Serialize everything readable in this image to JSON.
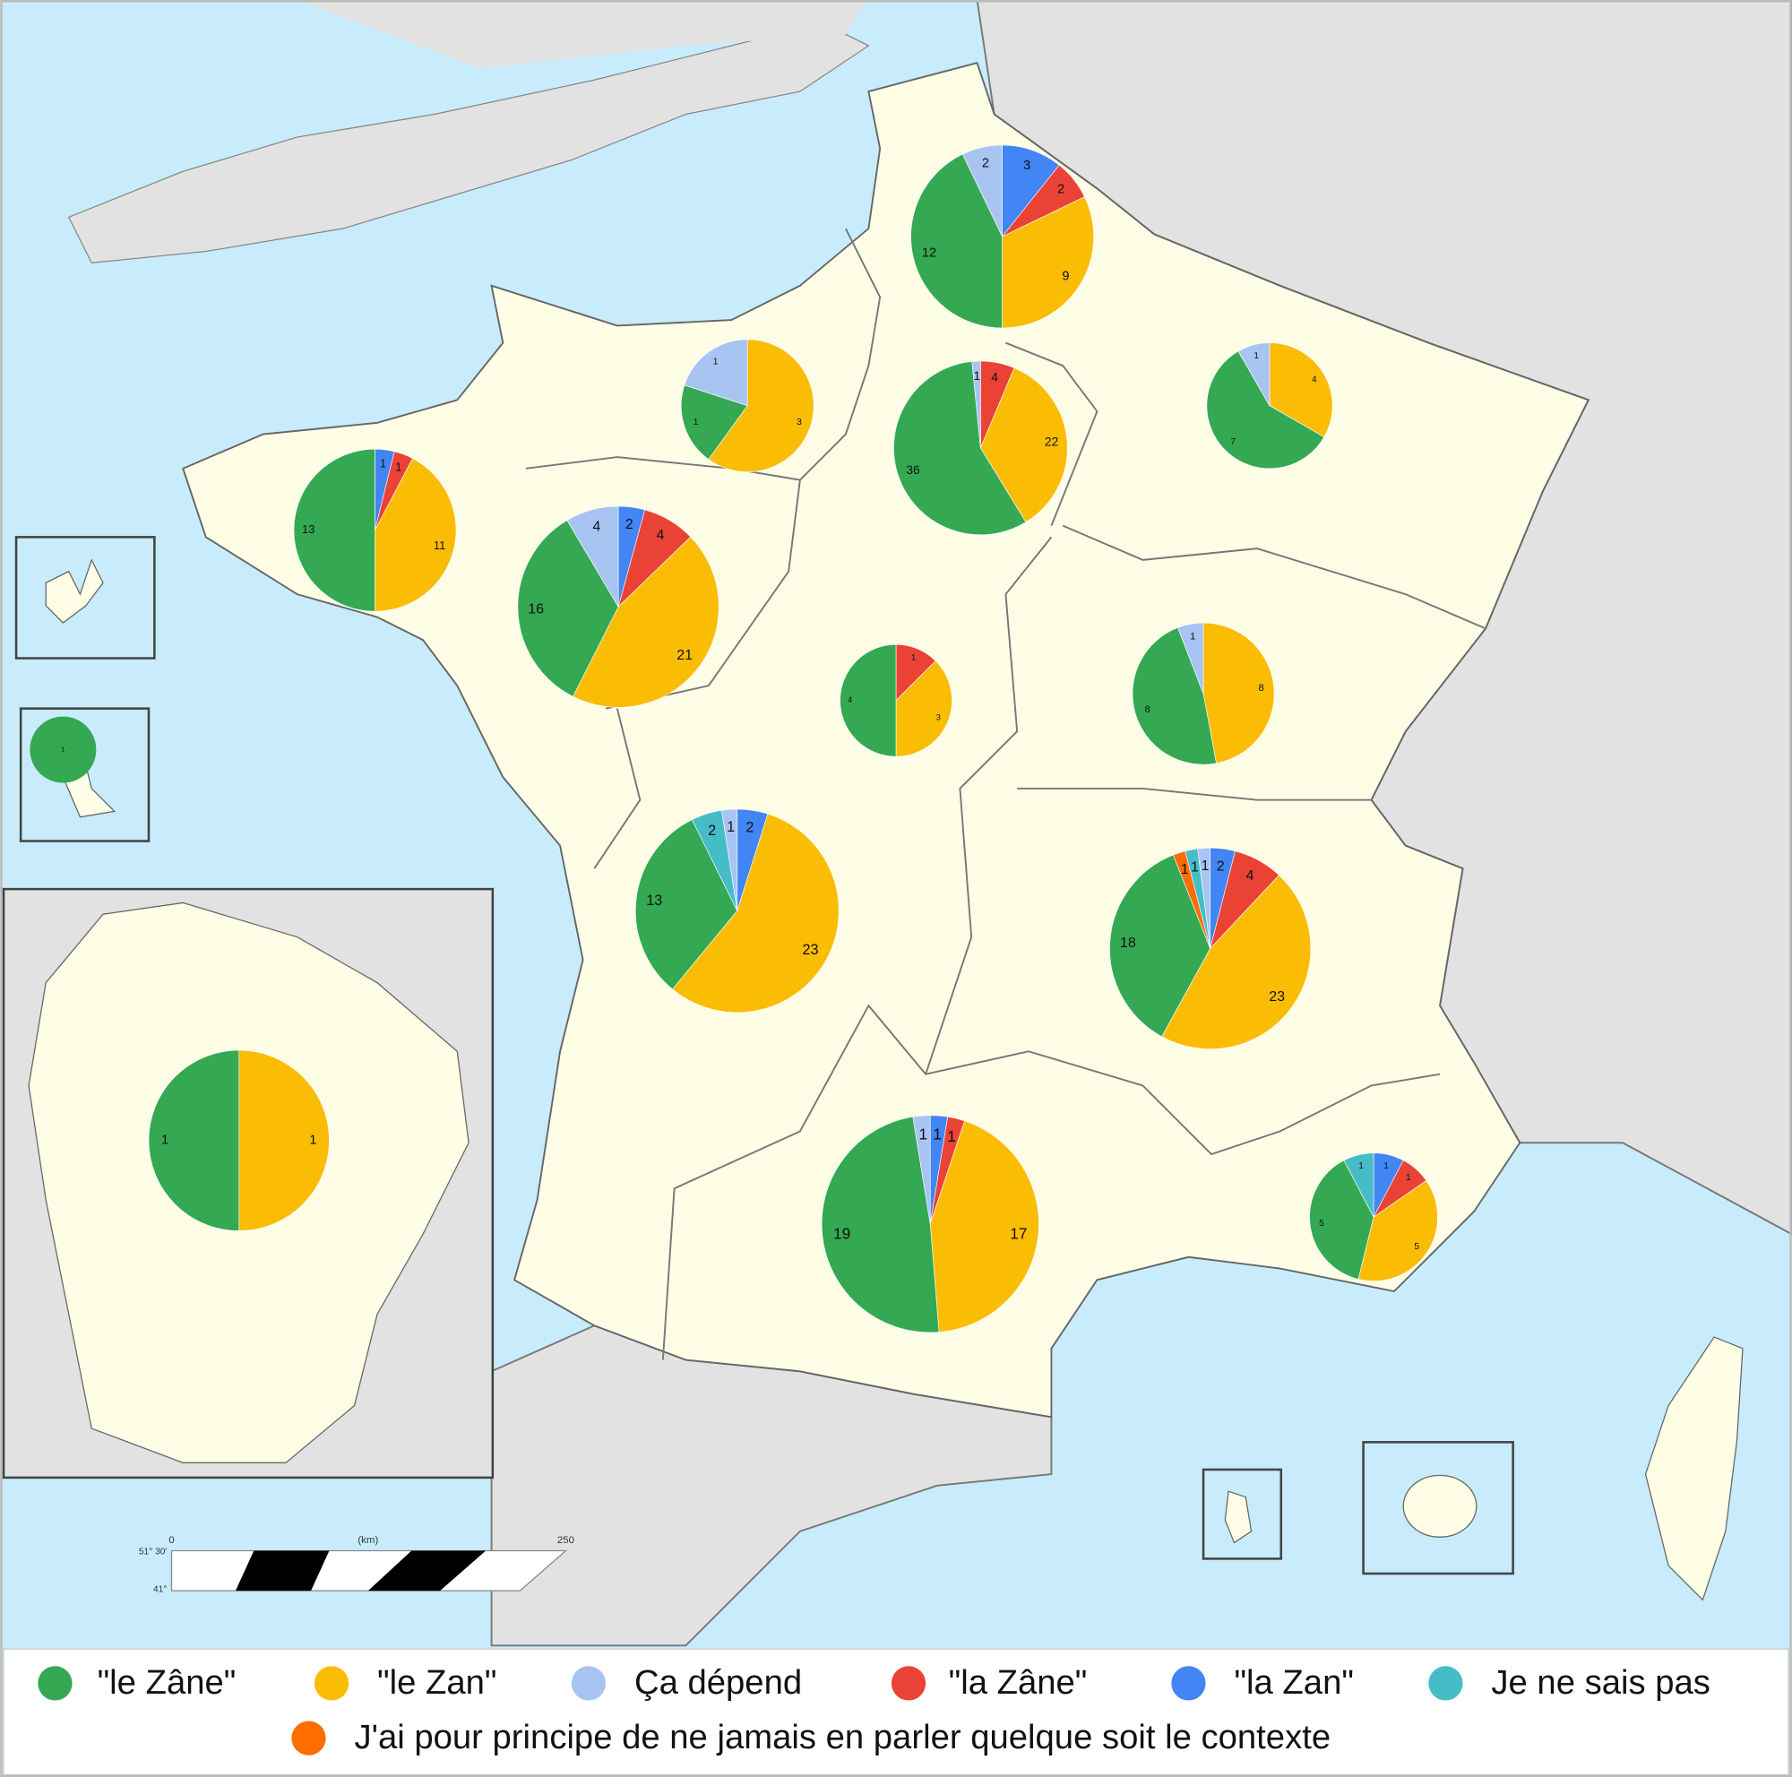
{
  "legend": [
    {
      "label": "\"le Zâne\"",
      "color": "#34a853"
    },
    {
      "label": "\"le Zan\"",
      "color": "#fbbc04"
    },
    {
      "label": "Ça dépend",
      "color": "#a8c4f2"
    },
    {
      "label": "\"la Zâne\"",
      "color": "#ea4335"
    },
    {
      "label": "\"la Zan\"",
      "color": "#4285f4"
    },
    {
      "label": "Je ne sais pas",
      "color": "#46bdc6"
    },
    {
      "label": "J'ai pour principe de ne jamais en parler quelque soit le contexte",
      "color": "#ff6d01"
    }
  ],
  "pies": [
    {
      "values": [
        12,
        9,
        2,
        2,
        3,
        null,
        null
      ]
    },
    {
      "values": [
        1,
        3,
        1,
        null,
        null,
        null,
        null
      ]
    },
    {
      "values": [
        36,
        22,
        1,
        4,
        null,
        null,
        null
      ]
    },
    {
      "values": [
        7,
        4,
        1,
        null,
        null,
        null,
        null
      ]
    },
    {
      "values": [
        13,
        11,
        null,
        1,
        1,
        null,
        null
      ]
    },
    {
      "values": [
        16,
        21,
        4,
        4,
        2,
        null,
        null
      ]
    },
    {
      "values": [
        4,
        3,
        null,
        1,
        null,
        null,
        null
      ]
    },
    {
      "values": [
        8,
        8,
        1,
        null,
        null,
        null,
        null
      ]
    },
    {
      "values": [
        13,
        23,
        1,
        null,
        2,
        2,
        null
      ]
    },
    {
      "values": [
        18,
        23,
        1,
        4,
        2,
        1,
        1
      ]
    },
    {
      "values": [
        19,
        17,
        1,
        1,
        1,
        null,
        null
      ]
    },
    {
      "values": [
        5,
        5,
        null,
        1,
        1,
        1,
        null
      ]
    },
    {
      "values": [
        1,
        1,
        null,
        null,
        null,
        null,
        null
      ]
    },
    {
      "values": [
        1,
        null,
        null,
        null,
        null,
        null,
        null
      ]
    }
  ],
  "scale_bar": {
    "start": "0",
    "unit": "(km)",
    "end": "250",
    "lat_top": "51° 30'",
    "lat_bottom": "41°"
  }
}
